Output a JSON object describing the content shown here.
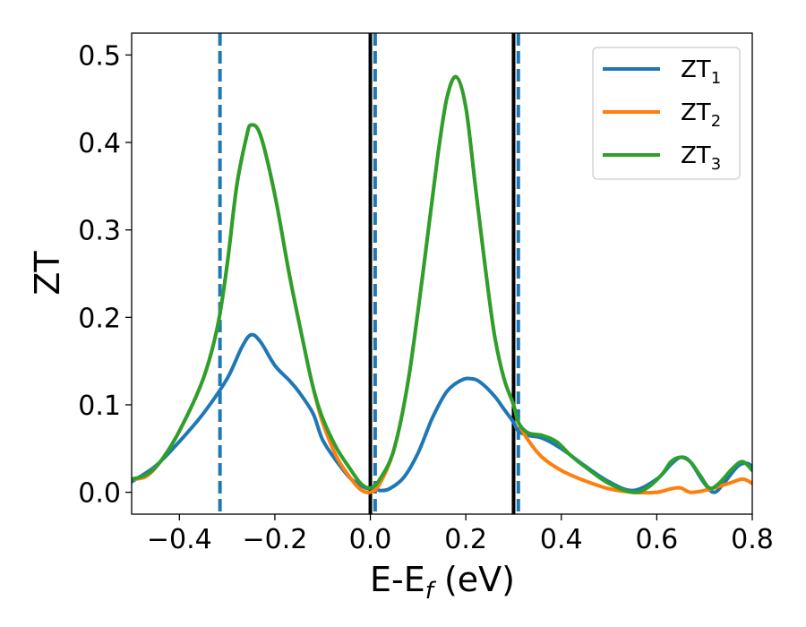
{
  "chart_data": {
    "type": "line",
    "xlabel": {
      "main": "E-E",
      "sub": "f",
      "unit": " (eV)"
    },
    "ylabel": "ZT",
    "xlim": [
      -0.5,
      0.8
    ],
    "ylim": [
      -0.025,
      0.525
    ],
    "xticks": [
      -0.4,
      -0.2,
      0.0,
      0.2,
      0.4,
      0.6,
      0.8
    ],
    "xtick_labels": [
      "−0.4",
      "−0.2",
      "0.0",
      "0.2",
      "0.4",
      "0.6",
      "0.8"
    ],
    "yticks": [
      0.0,
      0.1,
      0.2,
      0.3,
      0.4,
      0.5
    ],
    "ytick_labels": [
      "0.0",
      "0.1",
      "0.2",
      "0.3",
      "0.4",
      "0.5"
    ],
    "grid": false,
    "legend_position": "top-right",
    "vlines": [
      {
        "x": -0.315,
        "style": "dashed",
        "color": "#1f77b4"
      },
      {
        "x": 0.0,
        "style": "solid",
        "color": "#000000"
      },
      {
        "x": 0.01,
        "style": "dashed",
        "color": "#1f77b4"
      },
      {
        "x": 0.3,
        "style": "solid",
        "color": "#000000"
      },
      {
        "x": 0.31,
        "style": "dashed",
        "color": "#1f77b4"
      }
    ],
    "series": [
      {
        "name": "ZT",
        "sub": "1",
        "color": "#1f77b4",
        "points": [
          [
            -0.5,
            0.012
          ],
          [
            -0.45,
            0.03
          ],
          [
            -0.4,
            0.058
          ],
          [
            -0.35,
            0.09
          ],
          [
            -0.3,
            0.13
          ],
          [
            -0.27,
            0.165
          ],
          [
            -0.25,
            0.18
          ],
          [
            -0.23,
            0.172
          ],
          [
            -0.2,
            0.145
          ],
          [
            -0.17,
            0.128
          ],
          [
            -0.15,
            0.115
          ],
          [
            -0.12,
            0.09
          ],
          [
            -0.1,
            0.06
          ],
          [
            -0.07,
            0.035
          ],
          [
            -0.04,
            0.015
          ],
          [
            -0.01,
            0.005
          ],
          [
            0.0,
            0.005
          ],
          [
            0.01,
            0.005
          ],
          [
            0.02,
            0.002
          ],
          [
            0.04,
            0.004
          ],
          [
            0.07,
            0.017
          ],
          [
            0.1,
            0.045
          ],
          [
            0.13,
            0.085
          ],
          [
            0.16,
            0.115
          ],
          [
            0.19,
            0.128
          ],
          [
            0.21,
            0.13
          ],
          [
            0.23,
            0.126
          ],
          [
            0.26,
            0.11
          ],
          [
            0.28,
            0.095
          ],
          [
            0.3,
            0.08
          ],
          [
            0.31,
            0.07
          ],
          [
            0.33,
            0.065
          ],
          [
            0.36,
            0.062
          ],
          [
            0.4,
            0.05
          ],
          [
            0.45,
            0.03
          ],
          [
            0.5,
            0.012
          ],
          [
            0.55,
            0.002
          ],
          [
            0.6,
            0.015
          ],
          [
            0.63,
            0.032
          ],
          [
            0.65,
            0.04
          ],
          [
            0.67,
            0.035
          ],
          [
            0.7,
            0.01
          ],
          [
            0.72,
            0.0
          ],
          [
            0.74,
            0.01
          ],
          [
            0.77,
            0.03
          ],
          [
            0.79,
            0.033
          ],
          [
            0.8,
            0.028
          ]
        ]
      },
      {
        "name": "ZT",
        "sub": "2",
        "color": "#ff7f0e",
        "points": [
          [
            -0.5,
            0.015
          ],
          [
            -0.47,
            0.018
          ],
          [
            -0.44,
            0.035
          ],
          [
            -0.4,
            0.07
          ],
          [
            -0.35,
            0.13
          ],
          [
            -0.32,
            0.19
          ],
          [
            -0.3,
            0.26
          ],
          [
            -0.28,
            0.35
          ],
          [
            -0.26,
            0.405
          ],
          [
            -0.25,
            0.42
          ],
          [
            -0.23,
            0.408
          ],
          [
            -0.2,
            0.34
          ],
          [
            -0.17,
            0.25
          ],
          [
            -0.14,
            0.17
          ],
          [
            -0.12,
            0.12
          ],
          [
            -0.1,
            0.08
          ],
          [
            -0.07,
            0.04
          ],
          [
            -0.04,
            0.015
          ],
          [
            -0.02,
            0.003
          ],
          [
            0.0,
            0.0
          ],
          [
            0.02,
            0.01
          ],
          [
            0.05,
            0.05
          ],
          [
            0.08,
            0.13
          ],
          [
            0.11,
            0.25
          ],
          [
            0.14,
            0.38
          ],
          [
            0.16,
            0.45
          ],
          [
            0.18,
            0.475
          ],
          [
            0.2,
            0.44
          ],
          [
            0.22,
            0.35
          ],
          [
            0.24,
            0.26
          ],
          [
            0.26,
            0.18
          ],
          [
            0.28,
            0.13
          ],
          [
            0.3,
            0.1
          ],
          [
            0.31,
            0.08
          ],
          [
            0.33,
            0.06
          ],
          [
            0.36,
            0.04
          ],
          [
            0.4,
            0.025
          ],
          [
            0.45,
            0.013
          ],
          [
            0.5,
            0.004
          ],
          [
            0.55,
            0.0
          ],
          [
            0.6,
            0.0
          ],
          [
            0.63,
            0.004
          ],
          [
            0.65,
            0.005
          ],
          [
            0.67,
            0.0
          ],
          [
            0.7,
            0.002
          ],
          [
            0.75,
            0.01
          ],
          [
            0.78,
            0.015
          ],
          [
            0.8,
            0.01
          ]
        ]
      },
      {
        "name": "ZT",
        "sub": "3",
        "color": "#2ca02c",
        "points": [
          [
            -0.5,
            0.015
          ],
          [
            -0.47,
            0.02
          ],
          [
            -0.44,
            0.035
          ],
          [
            -0.4,
            0.07
          ],
          [
            -0.35,
            0.13
          ],
          [
            -0.32,
            0.19
          ],
          [
            -0.3,
            0.26
          ],
          [
            -0.28,
            0.35
          ],
          [
            -0.26,
            0.405
          ],
          [
            -0.25,
            0.42
          ],
          [
            -0.23,
            0.408
          ],
          [
            -0.2,
            0.34
          ],
          [
            -0.17,
            0.25
          ],
          [
            -0.14,
            0.17
          ],
          [
            -0.12,
            0.12
          ],
          [
            -0.1,
            0.085
          ],
          [
            -0.07,
            0.05
          ],
          [
            -0.04,
            0.025
          ],
          [
            -0.02,
            0.01
          ],
          [
            0.0,
            0.005
          ],
          [
            0.02,
            0.015
          ],
          [
            0.05,
            0.05
          ],
          [
            0.08,
            0.13
          ],
          [
            0.11,
            0.25
          ],
          [
            0.14,
            0.38
          ],
          [
            0.16,
            0.45
          ],
          [
            0.18,
            0.475
          ],
          [
            0.2,
            0.44
          ],
          [
            0.22,
            0.35
          ],
          [
            0.24,
            0.26
          ],
          [
            0.26,
            0.18
          ],
          [
            0.28,
            0.13
          ],
          [
            0.3,
            0.1
          ],
          [
            0.31,
            0.08
          ],
          [
            0.33,
            0.068
          ],
          [
            0.36,
            0.065
          ],
          [
            0.39,
            0.058
          ],
          [
            0.42,
            0.042
          ],
          [
            0.46,
            0.025
          ],
          [
            0.5,
            0.01
          ],
          [
            0.55,
            0.0
          ],
          [
            0.58,
            0.005
          ],
          [
            0.61,
            0.02
          ],
          [
            0.63,
            0.035
          ],
          [
            0.65,
            0.04
          ],
          [
            0.67,
            0.035
          ],
          [
            0.69,
            0.02
          ],
          [
            0.71,
            0.005
          ],
          [
            0.73,
            0.01
          ],
          [
            0.76,
            0.028
          ],
          [
            0.78,
            0.035
          ],
          [
            0.8,
            0.025
          ]
        ]
      }
    ]
  }
}
